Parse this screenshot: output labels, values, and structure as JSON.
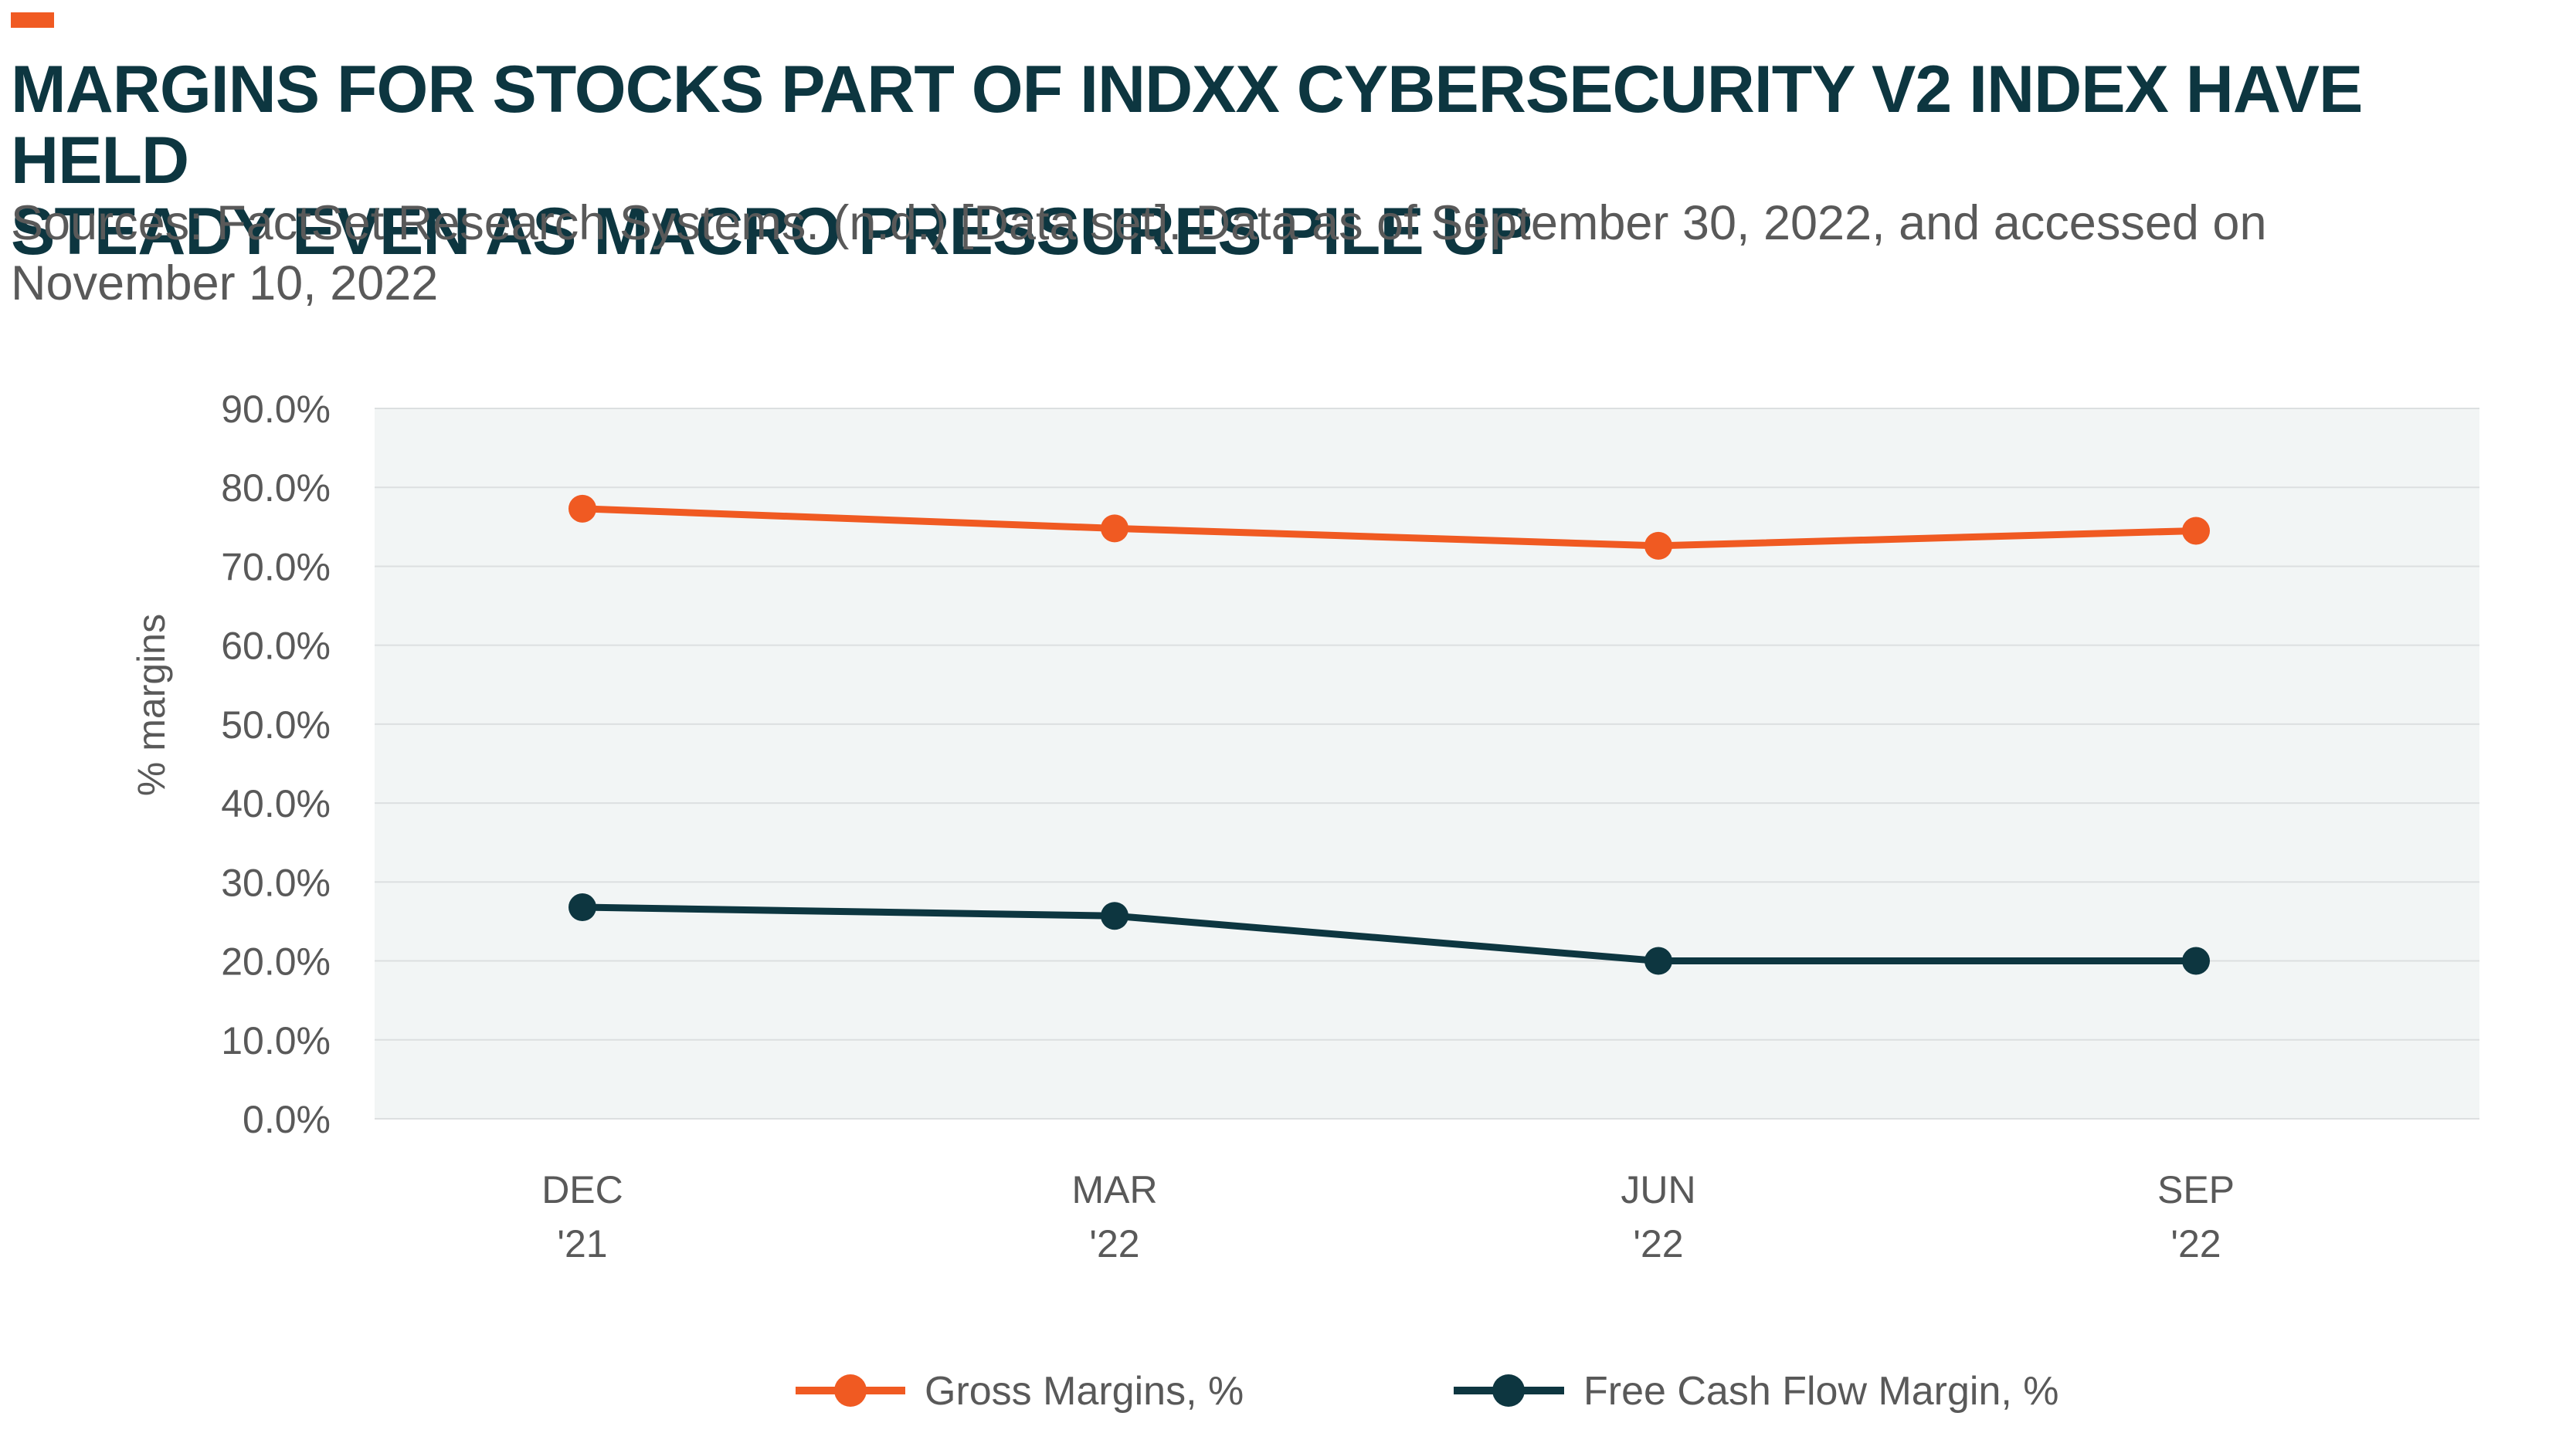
{
  "header": {
    "title_lines": [
      "MARGINS FOR STOCKS PART OF INDXX CYBERSECURITY V2 INDEX HAVE HELD",
      "STEADY EVEN AS MACRO PRESSURES PILE UP"
    ],
    "subtitle_lines": [
      "Sources: FactSet Research Systems. (n.d.) [Data set]. Data as of September 30, 2022, and accessed on",
      "November 10, 2022"
    ]
  },
  "colors": {
    "accent": "#f05a22",
    "gross": "#f05a22",
    "fcf": "#0d3640",
    "plot_bg": "#f2f5f5",
    "grid": "#dcdfe0",
    "title": "#0d3640",
    "text": "#595959"
  },
  "chart_data": {
    "type": "line",
    "title": "",
    "xlabel": "",
    "ylabel": "% margins",
    "ylim": [
      0,
      90
    ],
    "yticks": [
      0,
      10,
      20,
      30,
      40,
      50,
      60,
      70,
      80,
      90
    ],
    "ytick_labels": [
      "0.0%",
      "10.0%",
      "20.0%",
      "30.0%",
      "40.0%",
      "50.0%",
      "60.0%",
      "70.0%",
      "80.0%",
      "90.0%"
    ],
    "categories": [
      [
        "DEC",
        "'21"
      ],
      [
        "MAR",
        "'22"
      ],
      [
        "JUN",
        "'22"
      ],
      [
        "SEP",
        "'22"
      ]
    ],
    "grid": true,
    "legend_position": "bottom",
    "series": [
      {
        "name": "Gross Margins, %",
        "color": "#f05a22",
        "values": [
          77.3,
          74.8,
          72.6,
          74.5
        ]
      },
      {
        "name": "Free Cash Flow Margin, %",
        "color": "#0d3640",
        "values": [
          26.8,
          25.7,
          20.0,
          20.0
        ]
      }
    ]
  }
}
